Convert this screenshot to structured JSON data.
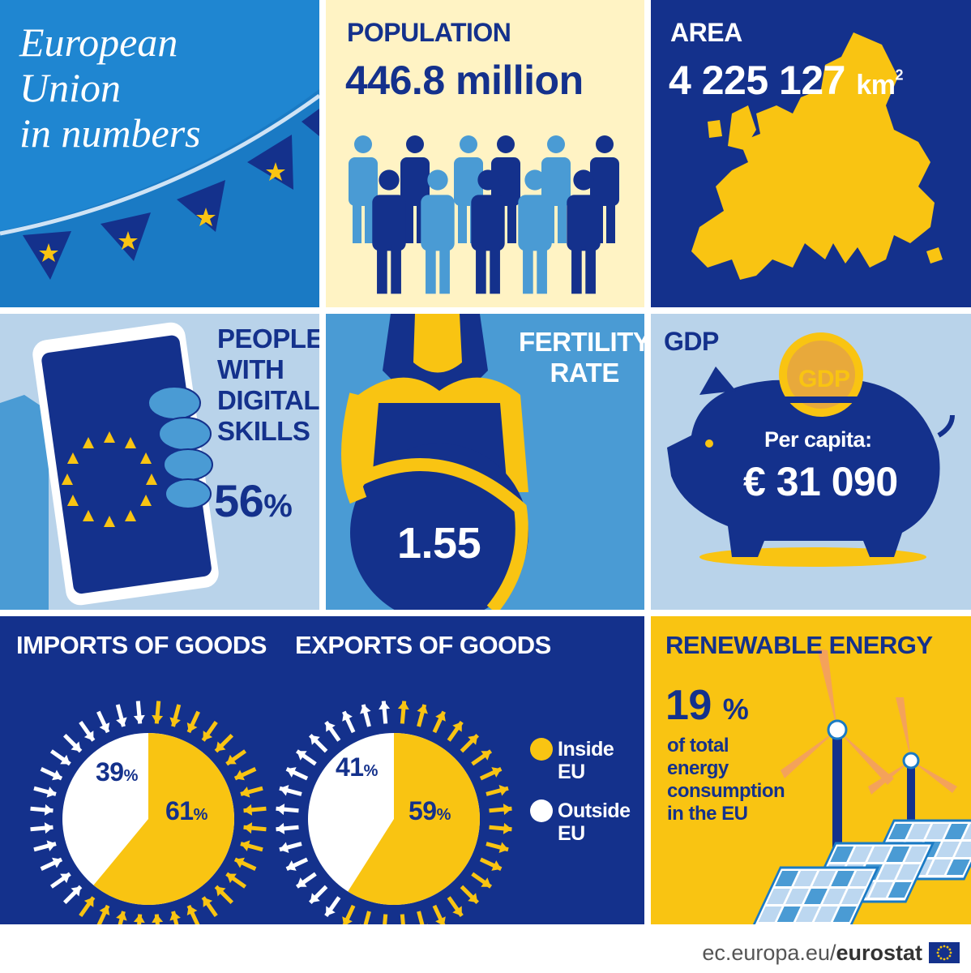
{
  "title": {
    "line1": "European",
    "line2": "Union",
    "line3": "in numbers"
  },
  "population": {
    "label": "POPULATION",
    "value": "446.8 million"
  },
  "area": {
    "label": "AREA",
    "value": "4 225 127",
    "unit": "km",
    "unit_sup": "2"
  },
  "digital": {
    "label_lines": [
      "PEOPLE",
      "WITH",
      "DIGITAL",
      "SKILLS"
    ],
    "value": "56",
    "unit": "%"
  },
  "fertility": {
    "label_lines": [
      "FERTILITY",
      "RATE"
    ],
    "value": "1.55"
  },
  "gdp": {
    "label": "GDP",
    "coin_text": "GDP",
    "sub": "Per capita:",
    "value": "€ 31 090"
  },
  "imports": {
    "label": "IMPORTS OF GOODS",
    "inside_label": "61",
    "outside_label": "39",
    "unit": "%"
  },
  "exports": {
    "label": "EXPORTS OF GOODS",
    "inside_label": "59",
    "outside_label": "41",
    "unit": "%"
  },
  "legend": {
    "inside_line1": "Inside",
    "inside_line2": "EU",
    "outside_line1": "Outside",
    "outside_line2": "EU"
  },
  "renewable": {
    "label": "RENEWABLE ENERGY",
    "value": "19",
    "unit": "%",
    "desc_lines": [
      "of total",
      "energy",
      "consumption",
      "in the EU"
    ]
  },
  "footer": {
    "domain": "ec.europa.eu/",
    "brand": "eurostat"
  },
  "colors": {
    "eu_blue": "#14318c",
    "mid_blue": "#1a7ac4",
    "yellow": "#f9c412",
    "cream": "#fff3c4",
    "light_blue": "#b9d3ea"
  },
  "chart_data": [
    {
      "type": "pie",
      "title": "IMPORTS OF GOODS",
      "labels": [
        "Inside EU",
        "Outside EU"
      ],
      "values": [
        61,
        39
      ],
      "colors": [
        "#f9c412",
        "#ffffff"
      ]
    },
    {
      "type": "pie",
      "title": "EXPORTS OF GOODS",
      "labels": [
        "Inside EU",
        "Outside EU"
      ],
      "values": [
        59,
        41
      ],
      "colors": [
        "#f9c412",
        "#ffffff"
      ]
    }
  ]
}
